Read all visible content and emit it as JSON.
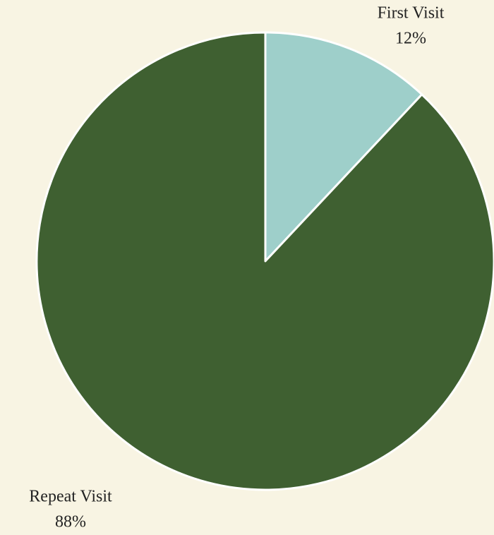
{
  "chart_data": {
    "type": "pie",
    "categories": [
      "First Visit",
      "Repeat Visit"
    ],
    "values": [
      12,
      88
    ],
    "value_labels": [
      "12%",
      "88%"
    ],
    "colors": [
      "#9ecfca",
      "#3f6031"
    ]
  }
}
